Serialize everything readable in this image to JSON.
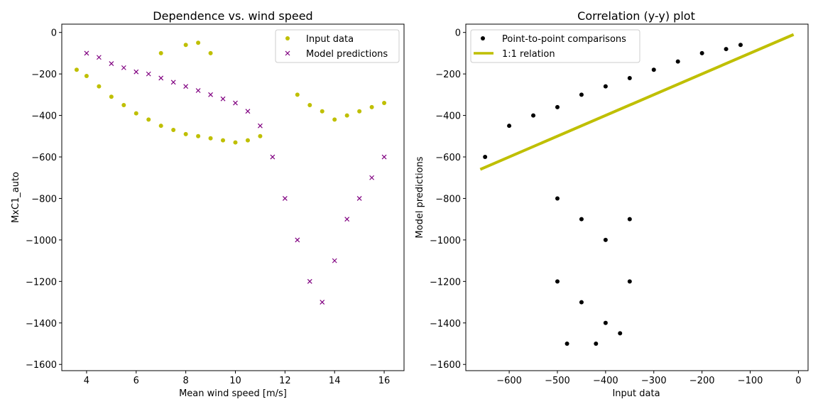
{
  "chart_data": [
    {
      "type": "scatter",
      "title": "Dependence vs. wind speed",
      "xlabel": "Mean wind speed [m/s]",
      "ylabel": "MxC1_auto",
      "xlim": [
        3.0,
        16.8
      ],
      "ylim": [
        -1630,
        40
      ],
      "xticks": [
        4,
        6,
        8,
        10,
        12,
        14,
        16
      ],
      "yticks": [
        0,
        -200,
        -400,
        -600,
        -800,
        -1000,
        -1200,
        -1400,
        -1600
      ],
      "legend": {
        "placement": "top-right",
        "items": [
          {
            "label": "Input data",
            "marker": "dot",
            "color": "#bfbf00"
          },
          {
            "label": "Model predictions",
            "marker": "x",
            "color": "#800080"
          }
        ]
      },
      "series": [
        {
          "name": "Input data",
          "color": "#bfbf00",
          "marker": "dot",
          "x": [
            3.6,
            4.0,
            4.5,
            5.0,
            5.5,
            6.0,
            6.5,
            7.0,
            7.5,
            8.0,
            8.5,
            9.0,
            9.5,
            10.0,
            10.5,
            11.0,
            7.0,
            8.0,
            8.5,
            9.0,
            12.5,
            13.0,
            13.5,
            14.0,
            14.5,
            15.0,
            15.5,
            16.0
          ],
          "y": [
            -180,
            -210,
            -260,
            -310,
            -350,
            -390,
            -420,
            -450,
            -470,
            -490,
            -500,
            -510,
            -520,
            -530,
            -520,
            -500,
            -100,
            -60,
            -50,
            -100,
            -300,
            -350,
            -380,
            -420,
            -400,
            -380,
            -360,
            -340
          ]
        },
        {
          "name": "Model predictions",
          "color": "#800080",
          "marker": "x",
          "x": [
            4.0,
            4.5,
            5.0,
            5.5,
            6.0,
            6.5,
            7.0,
            7.5,
            8.0,
            8.5,
            9.0,
            9.5,
            10.0,
            10.5,
            11.0,
            11.5,
            12.0,
            12.5,
            13.0,
            13.5,
            14.0,
            14.5,
            15.0,
            15.5,
            16.0
          ],
          "y": [
            -100,
            -120,
            -150,
            -170,
            -190,
            -200,
            -220,
            -240,
            -260,
            -280,
            -300,
            -320,
            -340,
            -380,
            -450,
            -600,
            -800,
            -1000,
            -1200,
            -1300,
            -1100,
            -900,
            -800,
            -700,
            -600
          ]
        }
      ]
    },
    {
      "type": "scatter",
      "title": "Correlation (y-y) plot",
      "xlabel": "Input data",
      "ylabel": "Model predictions",
      "xlim": [
        -690,
        20
      ],
      "ylim": [
        -1630,
        40
      ],
      "xticks": [
        -600,
        -500,
        -400,
        -300,
        -200,
        -100,
        0
      ],
      "yticks": [
        0,
        -200,
        -400,
        -600,
        -800,
        -1000,
        -1200,
        -1400,
        -1600
      ],
      "legend": {
        "placement": "top-left",
        "items": [
          {
            "label": "Point-to-point comparisons",
            "marker": "dot",
            "color": "#000000"
          },
          {
            "label": "1:1 relation",
            "marker": "line",
            "color": "#bfbf00"
          }
        ]
      },
      "series": [
        {
          "name": "Point-to-point comparisons",
          "color": "#000000",
          "marker": "dot",
          "x": [
            -650,
            -600,
            -550,
            -500,
            -450,
            -400,
            -350,
            -300,
            -250,
            -200,
            -150,
            -120,
            -500,
            -450,
            -400,
            -350,
            -500,
            -450,
            -400,
            -350,
            -480,
            -420,
            -370
          ],
          "y": [
            -600,
            -450,
            -400,
            -360,
            -300,
            -260,
            -220,
            -180,
            -140,
            -100,
            -80,
            -60,
            -800,
            -900,
            -1000,
            -900,
            -1200,
            -1300,
            -1400,
            -1200,
            -1500,
            -1500,
            -1450
          ]
        },
        {
          "name": "1:1 relation",
          "color": "#bfbf00",
          "marker": "line",
          "x": [
            -660,
            -10
          ],
          "y": [
            -660,
            -10
          ]
        }
      ]
    }
  ]
}
